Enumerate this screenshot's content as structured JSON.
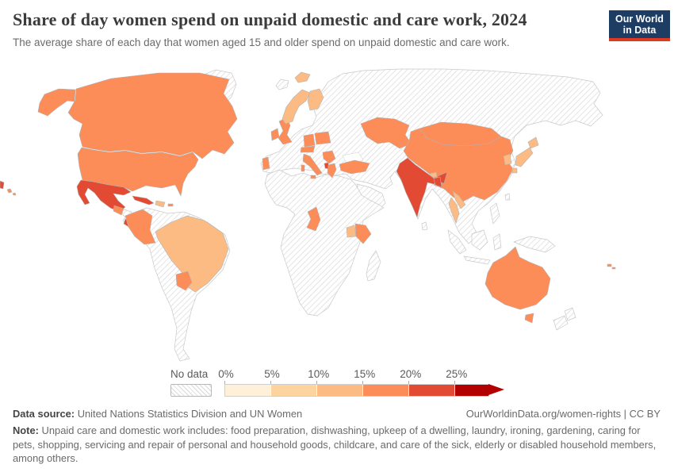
{
  "header": {
    "title": "Share of day women spend on unpaid domestic and care work, 2024",
    "subtitle": "The average share of each day that women aged 15 and older spend on unpaid domestic and care work.",
    "logo": {
      "line1": "Our World",
      "line2": "in Data",
      "bg_color": "#1d3d63",
      "accent_color": "#dc3a23"
    }
  },
  "legend": {
    "no_data_label": "No data",
    "ticks": [
      "0%",
      "5%",
      "10%",
      "15%",
      "20%",
      "25%"
    ],
    "bins": [
      {
        "range": "0-5%",
        "color": "#fef0d9"
      },
      {
        "range": "5-10%",
        "color": "#fdd49e"
      },
      {
        "range": "10-15%",
        "color": "#fdbb84"
      },
      {
        "range": "15-20%",
        "color": "#fc8d59"
      },
      {
        "range": "20-25%",
        "color": "#e34a33"
      },
      {
        "range": "25%+",
        "color": "#b30000"
      }
    ]
  },
  "footer": {
    "data_source_label": "Data source:",
    "data_source": "United Nations Statistics Division and UN Women",
    "link": "OurWorldinData.org/women-rights | CC BY",
    "note_label": "Note:",
    "note": "Unpaid care and domestic work includes: food preparation, dishwashing, upkeep of a dwelling, laundry, ironing, gardening, caring for pets, shopping, servicing and repair of personal and household goods, childcare, and care of the sick, elderly or disabled household members, among others."
  },
  "chart_data": {
    "type": "choropleth_map",
    "title": "Share of day women spend on unpaid domestic and care work",
    "year": "2024",
    "unit": "share of each day (%)",
    "bins": [
      "0-5%",
      "5-10%",
      "10-15%",
      "15-20%",
      "20-25%",
      "25%+",
      "No data"
    ],
    "countries": [
      {
        "name": "Canada",
        "value_bin": "15-20%"
      },
      {
        "name": "United States",
        "value_bin": "15-20%"
      },
      {
        "name": "Mexico",
        "value_bin": "20-25%"
      },
      {
        "name": "Guatemala",
        "value_bin": "15-20%"
      },
      {
        "name": "Costa Rica",
        "value_bin": "20-25%"
      },
      {
        "name": "Cuba",
        "value_bin": "20-25%"
      },
      {
        "name": "Dominican Republic",
        "value_bin": "10-15%"
      },
      {
        "name": "Puerto Rico",
        "value_bin": "15-20%"
      },
      {
        "name": "Colombia",
        "value_bin": "15-20%"
      },
      {
        "name": "Brazil",
        "value_bin": "10-15%"
      },
      {
        "name": "Paraguay",
        "value_bin": "15-20%"
      },
      {
        "name": "United Kingdom",
        "value_bin": "15-20%"
      },
      {
        "name": "Ireland",
        "value_bin": "15-20%"
      },
      {
        "name": "Portugal",
        "value_bin": "15-20%"
      },
      {
        "name": "Norway",
        "value_bin": "10-15%"
      },
      {
        "name": "Finland",
        "value_bin": "10-15%"
      },
      {
        "name": "Germany",
        "value_bin": "15-20%"
      },
      {
        "name": "Poland",
        "value_bin": "15-20%"
      },
      {
        "name": "Austria",
        "value_bin": "15-20%"
      },
      {
        "name": "Italy",
        "value_bin": "15-20%"
      },
      {
        "name": "Serbia",
        "value_bin": "15-20%"
      },
      {
        "name": "Albania",
        "value_bin": "20-25%"
      },
      {
        "name": "Greece",
        "value_bin": "15-20%"
      },
      {
        "name": "Turkey",
        "value_bin": "15-20%"
      },
      {
        "name": "Kazakhstan",
        "value_bin": "15-20%"
      },
      {
        "name": "Mongolia",
        "value_bin": "15-20%"
      },
      {
        "name": "China",
        "value_bin": "15-20%"
      },
      {
        "name": "India",
        "value_bin": "20-25%"
      },
      {
        "name": "Bangladesh",
        "value_bin": "20-25%"
      },
      {
        "name": "Bhutan",
        "value_bin": "10-15%"
      },
      {
        "name": "Laos",
        "value_bin": "10-15%"
      },
      {
        "name": "Thailand",
        "value_bin": "10-15%"
      },
      {
        "name": "South Korea",
        "value_bin": "10-15%"
      },
      {
        "name": "Japan",
        "value_bin": "10-15%"
      },
      {
        "name": "Cameroon",
        "value_bin": "15-20%"
      },
      {
        "name": "Uganda",
        "value_bin": "10-15%"
      },
      {
        "name": "Kenya",
        "value_bin": "15-20%"
      },
      {
        "name": "Australia",
        "value_bin": "15-20%"
      },
      {
        "name": "Fiji",
        "value_bin": "15-20%"
      }
    ],
    "no_data_regions_visible": [
      "Greenland",
      "Russia",
      "France",
      "Spain",
      "Sweden",
      "Iceland",
      "Most of Africa",
      "Middle East",
      "Central Asia",
      "Argentina",
      "Peru",
      "Bolivia",
      "Chile",
      "Venezuela",
      "Pakistan",
      "Nepal",
      "Myanmar",
      "Vietnam",
      "Indonesia",
      "Philippines",
      "Papua New Guinea",
      "New Zealand",
      "Madagascar"
    ]
  }
}
